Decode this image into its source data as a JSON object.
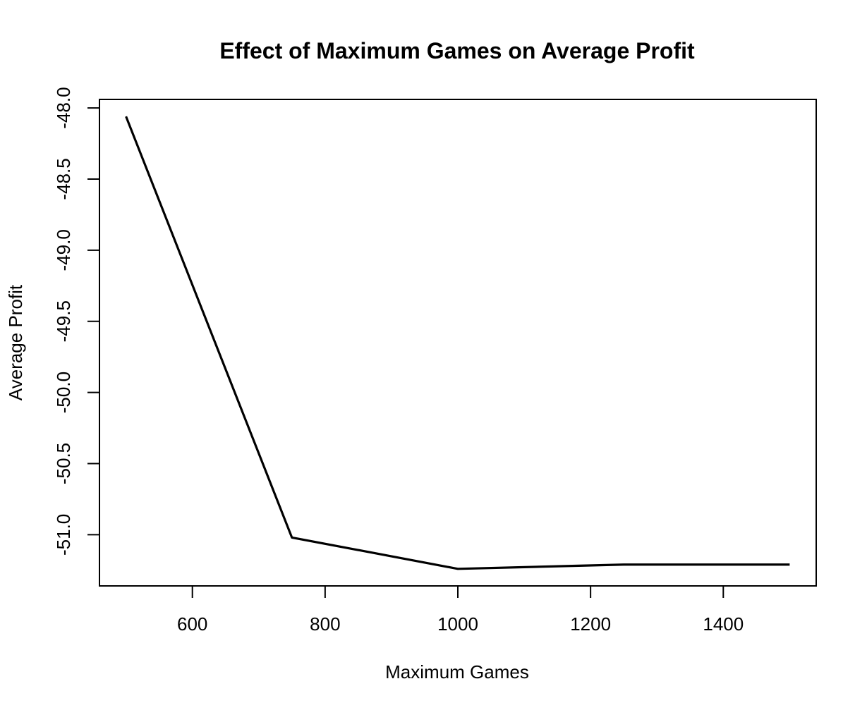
{
  "chart_data": {
    "type": "line",
    "title": "Effect of Maximum Games on Average Profit",
    "xlabel": "Maximum Games",
    "ylabel": "Average Profit",
    "x": [
      500,
      750,
      1000,
      1250,
      1500
    ],
    "series": [
      {
        "values": [
          -48.06,
          -51.02,
          -51.24,
          -51.21,
          -51.21
        ],
        "color": "#000000"
      }
    ],
    "xlim": [
      460,
      1540
    ],
    "ylim": [
      -51.36,
      -47.94
    ],
    "xticks": [
      600,
      800,
      1000,
      1200,
      1400
    ],
    "xtick_labels": [
      "600",
      "800",
      "1000",
      "1200",
      "1400"
    ],
    "yticks": [
      -48.0,
      -48.5,
      -49.0,
      -49.5,
      -50.0,
      -50.5,
      -51.0
    ],
    "ytick_labels": [
      "-48.0",
      "-48.5",
      "-49.0",
      "-49.5",
      "-50.0",
      "-50.5",
      "-51.0"
    ],
    "grid": false,
    "legend": "none"
  }
}
